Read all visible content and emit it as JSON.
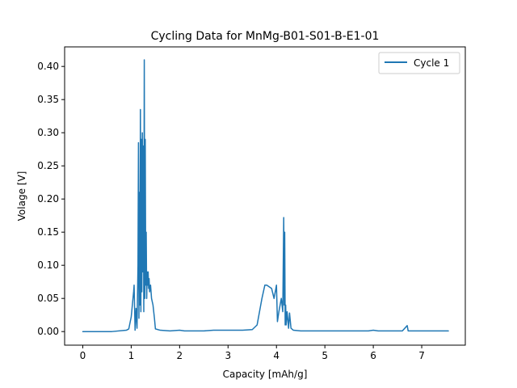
{
  "chart_data": {
    "type": "line",
    "title": "Cycling Data for MnMg-B01-S01-B-E1-01",
    "xlabel": "Capacity [mAh/g]",
    "ylabel": "Volage [V]",
    "xlim": [
      -0.375,
      7.9
    ],
    "ylim": [
      -0.0205,
      0.4295
    ],
    "xticks": [
      0,
      1,
      2,
      3,
      4,
      5,
      6,
      7
    ],
    "yticks": [
      0.0,
      0.05,
      0.1,
      0.15,
      0.2,
      0.25,
      0.3,
      0.35,
      0.4
    ],
    "ytick_labels": [
      "0.00",
      "0.05",
      "0.10",
      "0.15",
      "0.20",
      "0.25",
      "0.30",
      "0.35",
      "0.40"
    ],
    "grid": false,
    "legend": "top-right",
    "series": [
      {
        "name": "Cycle 1",
        "color": "#1f77b4",
        "x": [
          0.0,
          0.3,
          0.6,
          0.9,
          0.95,
          1.0,
          1.05,
          1.06,
          1.08,
          1.1,
          1.12,
          1.14,
          1.15,
          1.16,
          1.17,
          1.18,
          1.19,
          1.2,
          1.21,
          1.22,
          1.23,
          1.24,
          1.25,
          1.26,
          1.27,
          1.28,
          1.29,
          1.3,
          1.31,
          1.32,
          1.33,
          1.34,
          1.35,
          1.36,
          1.37,
          1.38,
          1.4,
          1.42,
          1.45,
          1.48,
          1.5,
          1.6,
          1.8,
          2.0,
          2.1,
          2.3,
          2.5,
          2.7,
          3.0,
          3.3,
          3.5,
          3.6,
          3.7,
          3.76,
          3.8,
          3.9,
          3.95,
          4.0,
          4.02,
          4.05,
          4.1,
          4.13,
          4.15,
          4.16,
          4.17,
          4.18,
          4.19,
          4.2,
          4.22,
          4.25,
          4.27,
          4.3,
          4.35,
          4.5,
          5.0,
          5.5,
          5.9,
          6.0,
          6.1,
          6.3,
          6.6,
          6.7,
          6.72,
          7.0,
          7.3,
          7.55
        ],
        "y": [
          0.0,
          0.0,
          0.0,
          0.002,
          0.004,
          0.022,
          0.06,
          0.07,
          0.002,
          0.035,
          0.005,
          0.1,
          0.285,
          0.02,
          0.21,
          0.04,
          0.335,
          0.03,
          0.29,
          0.06,
          0.3,
          0.09,
          0.28,
          0.03,
          0.41,
          0.05,
          0.29,
          0.07,
          0.15,
          0.05,
          0.09,
          0.07,
          0.09,
          0.065,
          0.08,
          0.06,
          0.07,
          0.05,
          0.04,
          0.02,
          0.004,
          0.002,
          0.001,
          0.002,
          0.001,
          0.001,
          0.001,
          0.002,
          0.002,
          0.002,
          0.003,
          0.01,
          0.05,
          0.07,
          0.07,
          0.065,
          0.05,
          0.07,
          0.015,
          0.03,
          0.05,
          0.03,
          0.172,
          0.04,
          0.15,
          0.01,
          0.04,
          0.01,
          0.03,
          0.005,
          0.028,
          0.005,
          0.002,
          0.001,
          0.001,
          0.001,
          0.001,
          0.002,
          0.001,
          0.001,
          0.001,
          0.009,
          0.001,
          0.001,
          0.001,
          0.001
        ]
      }
    ]
  }
}
